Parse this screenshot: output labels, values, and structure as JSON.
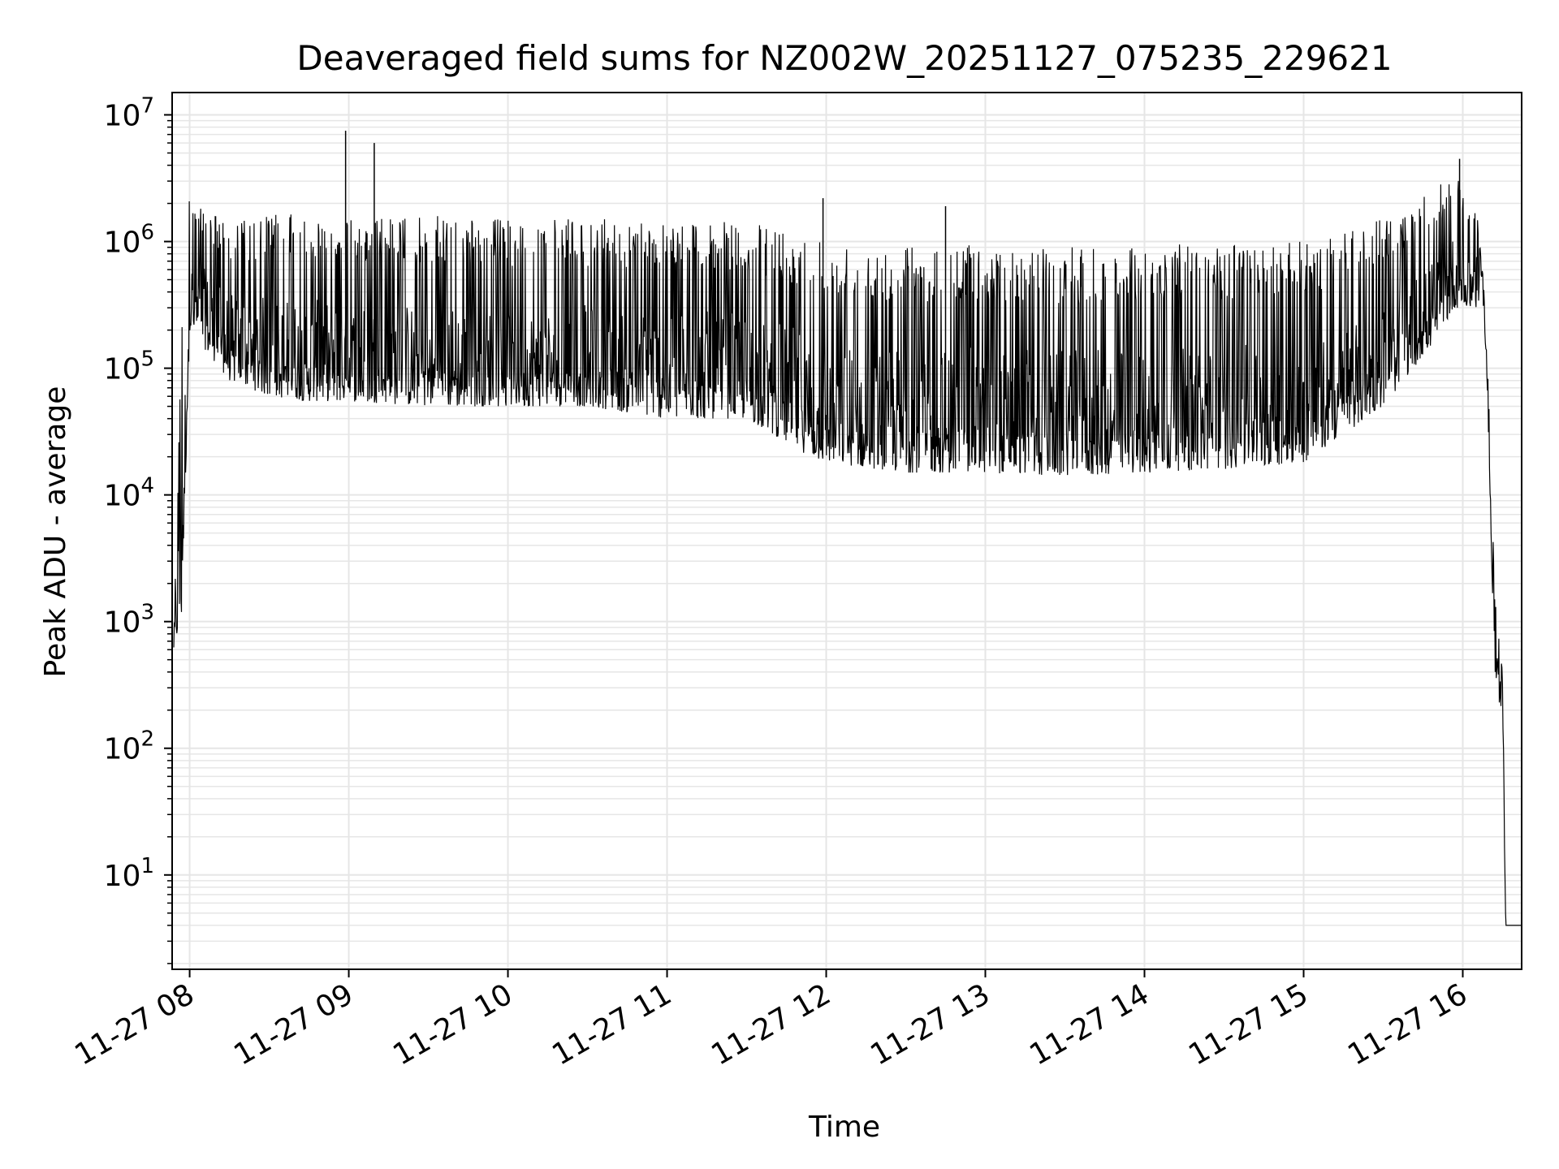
{
  "chart_data": {
    "type": "line",
    "title": "Deaveraged field sums for NZ002W_20251127_075235_229621",
    "xlabel": "Time",
    "ylabel": "Peak ADU - average",
    "y_scale": "log",
    "grid": true,
    "line_color": "#000000",
    "grid_color": "#e6e6e6",
    "x_ticks": [
      "11-27 08",
      "11-27 09",
      "11-27 10",
      "11-27 11",
      "11-27 12",
      "11-27 13",
      "11-27 14",
      "11-27 15",
      "11-27 16"
    ],
    "x_tick_hours": [
      8,
      9,
      10,
      11,
      12,
      13,
      14,
      15,
      16
    ],
    "xlim_hours": [
      7.89,
      16.37
    ],
    "ylim": [
      1.8,
      15000000
    ],
    "y_ticks": [
      {
        "value": 10,
        "base": "10",
        "exp": "1"
      },
      {
        "value": 100,
        "base": "10",
        "exp": "2"
      },
      {
        "value": 1000,
        "base": "10",
        "exp": "3"
      },
      {
        "value": 10000,
        "base": "10",
        "exp": "4"
      },
      {
        "value": 100000,
        "base": "10",
        "exp": "5"
      },
      {
        "value": 1000000,
        "base": "10",
        "exp": "6"
      },
      {
        "value": 10000000,
        "base": "10",
        "exp": "7"
      }
    ],
    "series": [
      {
        "envelope": [
          {
            "hour": 7.9,
            "low": 600,
            "high": 1000
          },
          {
            "hour": 7.95,
            "low": 1000,
            "high": 300000
          },
          {
            "hour": 8.0,
            "low": 200000,
            "high": 2500000
          },
          {
            "hour": 8.25,
            "low": 80000,
            "high": 1400000
          },
          {
            "hour": 8.5,
            "low": 60000,
            "high": 1700000
          },
          {
            "hour": 8.75,
            "low": 55000,
            "high": 1600000
          },
          {
            "hour": 9.0,
            "low": 55000,
            "high": 1500000
          },
          {
            "hour": 9.5,
            "low": 50000,
            "high": 1600000
          },
          {
            "hour": 10.0,
            "low": 50000,
            "high": 1500000
          },
          {
            "hour": 10.5,
            "low": 50000,
            "high": 1500000
          },
          {
            "hour": 11.0,
            "low": 40000,
            "high": 1500000
          },
          {
            "hour": 11.5,
            "low": 40000,
            "high": 1400000
          },
          {
            "hour": 11.9,
            "low": 20000,
            "high": 1200000
          },
          {
            "hour": 12.0,
            "low": 18000,
            "high": 1000000
          },
          {
            "hour": 12.5,
            "low": 15000,
            "high": 950000
          },
          {
            "hour": 13.0,
            "low": 15000,
            "high": 950000
          },
          {
            "hour": 13.5,
            "low": 14000,
            "high": 900000
          },
          {
            "hour": 14.0,
            "low": 15000,
            "high": 950000
          },
          {
            "hour": 14.5,
            "low": 16000,
            "high": 950000
          },
          {
            "hour": 15.0,
            "low": 18000,
            "high": 1000000
          },
          {
            "hour": 15.5,
            "low": 50000,
            "high": 1500000
          },
          {
            "hour": 15.8,
            "low": 150000,
            "high": 2500000
          },
          {
            "hour": 15.95,
            "low": 300000,
            "high": 3500000
          },
          {
            "hour": 16.1,
            "low": 300000,
            "high": 1500000
          },
          {
            "hour": 16.12,
            "low": 500000,
            "high": 700000
          },
          {
            "hour": 16.15,
            "low": 100000,
            "high": 200000
          },
          {
            "hour": 16.2,
            "low": 400,
            "high": 2000
          },
          {
            "hour": 16.25,
            "low": 150,
            "high": 400
          },
          {
            "hour": 16.27,
            "low": 4,
            "high": 4
          },
          {
            "hour": 16.37,
            "low": 4,
            "high": 4
          }
        ],
        "spikes": [
          {
            "hour": 8.98,
            "value": 7500000
          },
          {
            "hour": 9.16,
            "value": 6000000
          },
          {
            "hour": 11.98,
            "value": 2200000
          },
          {
            "hour": 12.75,
            "value": 1900000
          },
          {
            "hour": 15.98,
            "value": 4500000
          }
        ]
      }
    ]
  }
}
